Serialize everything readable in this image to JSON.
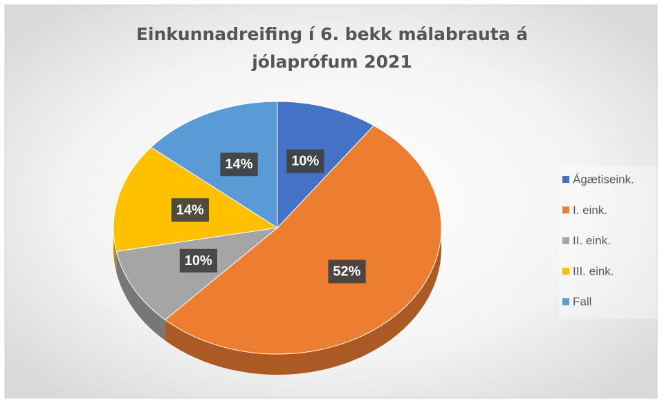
{
  "chart_data": {
    "type": "pie",
    "title": "Einkunnadreifing í 6. bekk málabrauta á jólaprófum 2021",
    "categories": [
      "Ágætiseink.",
      "I. eink.",
      "II. eink.",
      "III. eink.",
      "Fall"
    ],
    "values": [
      10,
      52,
      10,
      14,
      14
    ],
    "value_labels": [
      "10%",
      "52%",
      "10%",
      "14%",
      "14%"
    ],
    "colors": [
      "#4472c4",
      "#ed7d31",
      "#a5a5a5",
      "#ffc000",
      "#5b9bd5"
    ],
    "legend": "right"
  }
}
